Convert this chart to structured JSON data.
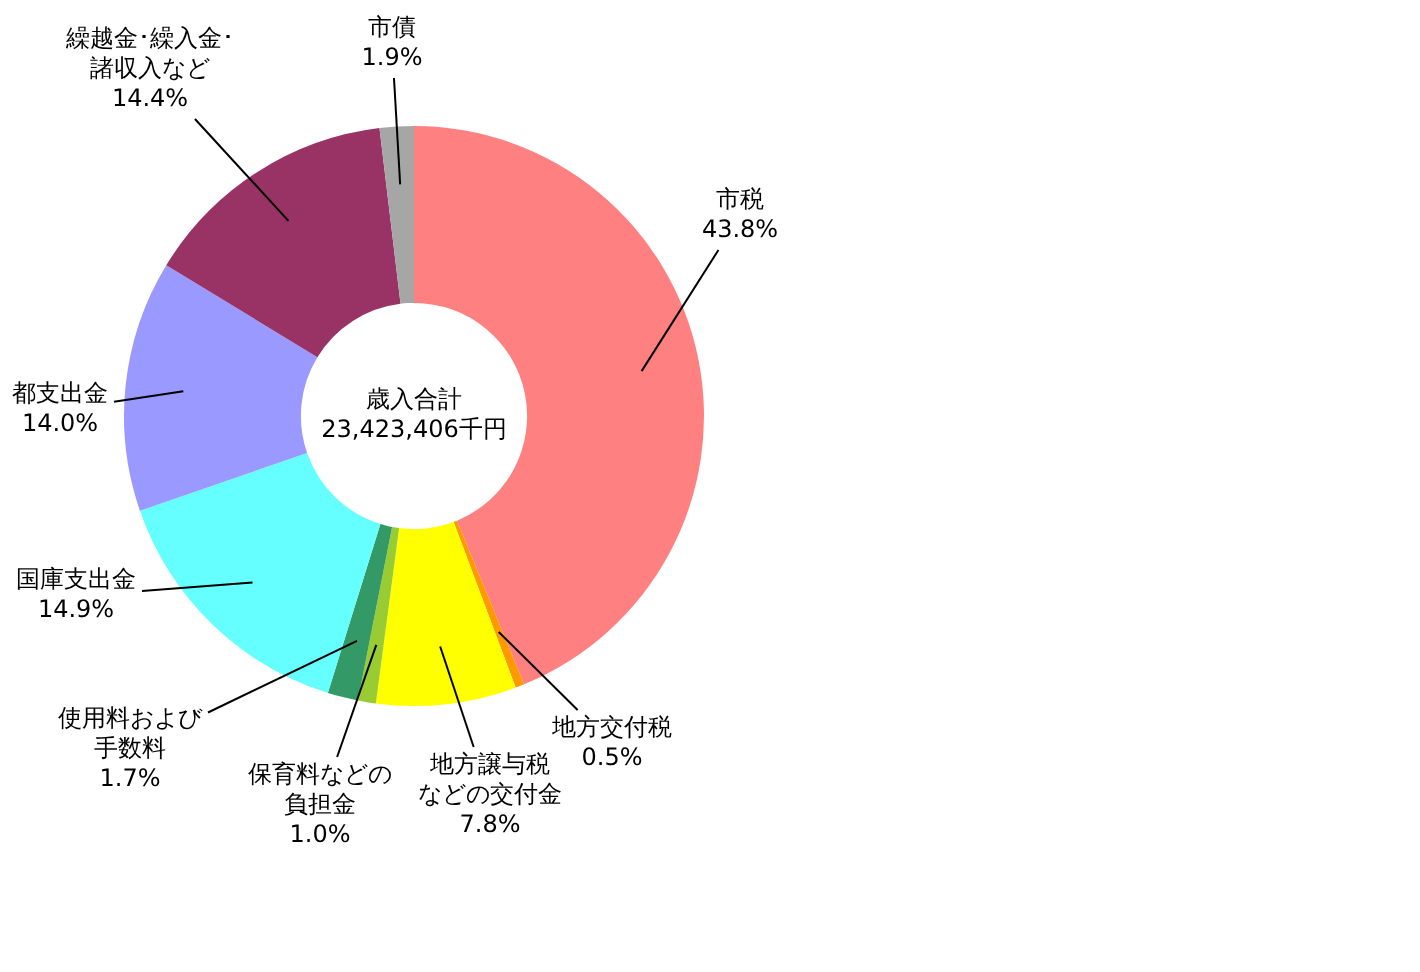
{
  "chart_data": {
    "type": "donut",
    "categories": [
      "市税",
      "地方交付税",
      "地方譲与税などの交付金",
      "保育料などの負担金",
      "使用料および手数料",
      "国庫支出金",
      "都支出金",
      "繰越金･繰入金･諸収入など",
      "市債"
    ],
    "value_labels": [
      "43.8%",
      "0.5%",
      "7.8%",
      "1.0%",
      "1.7%",
      "14.9%",
      "14.0%",
      "14.4%",
      "1.9%"
    ],
    "values": [
      43.8,
      0.5,
      7.8,
      1.0,
      1.7,
      14.9,
      14.0,
      14.4,
      1.9
    ],
    "colors": [
      "#ff8080",
      "#ff9900",
      "#ffff00",
      "#99cc33",
      "#339966",
      "#66ffff",
      "#9999ff",
      "#993366",
      "#a6a6a6"
    ],
    "legend": false,
    "annotations": [
      "歳入合計\n23,423,406千円"
    ]
  }
}
